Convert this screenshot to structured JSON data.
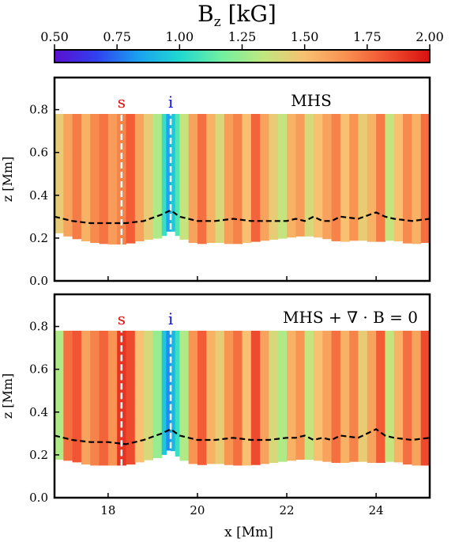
{
  "colorbar": {
    "title": "B",
    "title_sub": "z",
    "title_unit": " [kG]",
    "ticks": [
      "0.50",
      "0.75",
      "1.00",
      "1.25",
      "1.50",
      "1.75",
      "2.00"
    ],
    "range": [
      0.5,
      2.0
    ]
  },
  "colors": {
    "markers_s": "#e01010",
    "markers_i": "#1010e0",
    "colormap": [
      "#5a0fd0",
      "#3040f0",
      "#1aa0f0",
      "#20d8d0",
      "#70f0a0",
      "#c0e880",
      "#f8c070",
      "#f89050",
      "#f05030",
      "#d81010"
    ]
  },
  "xaxis": {
    "label": "x [Mm]",
    "ticks": [
      "18",
      "20",
      "22",
      "24"
    ],
    "range": [
      16.8,
      25.2
    ]
  },
  "chart_data": [
    {
      "type": "heatmap",
      "title": "MHS",
      "markers": [
        {
          "label": "s",
          "x": 18.3
        },
        {
          "label": "i",
          "x": 19.4
        }
      ],
      "ylabel": "z [Mm]",
      "yticks": [
        "0.0",
        "0.2",
        "0.4",
        "0.6",
        "0.8"
      ],
      "ylim": [
        0.0,
        0.95
      ],
      "xlim": [
        16.8,
        25.2
      ],
      "zmax": 0.78,
      "bottom_boundary": {
        "x": [
          16.8,
          17.2,
          17.6,
          18.0,
          18.4,
          18.8,
          19.2,
          19.4,
          19.6,
          20.0,
          20.4,
          20.8,
          21.2,
          21.6,
          22.0,
          22.4,
          22.8,
          23.2,
          23.6,
          24.0,
          24.4,
          24.8,
          25.2
        ],
        "z": [
          0.23,
          0.2,
          0.18,
          0.17,
          0.17,
          0.19,
          0.2,
          0.24,
          0.2,
          0.17,
          0.18,
          0.17,
          0.18,
          0.19,
          0.2,
          0.21,
          0.2,
          0.18,
          0.19,
          0.18,
          0.19,
          0.17,
          0.18
        ]
      },
      "tau_contour": {
        "x": [
          16.8,
          17.2,
          17.6,
          18.0,
          18.4,
          18.8,
          19.2,
          19.4,
          19.6,
          20.0,
          20.4,
          20.8,
          21.2,
          21.6,
          22.0,
          22.2,
          22.4,
          22.6,
          22.8,
          23.0,
          23.2,
          23.6,
          24.0,
          24.2,
          24.4,
          24.8,
          25.2
        ],
        "z": [
          0.3,
          0.28,
          0.27,
          0.27,
          0.27,
          0.28,
          0.31,
          0.33,
          0.3,
          0.28,
          0.28,
          0.29,
          0.28,
          0.28,
          0.28,
          0.29,
          0.28,
          0.3,
          0.28,
          0.28,
          0.3,
          0.29,
          0.32,
          0.3,
          0.29,
          0.28,
          0.29
        ]
      },
      "bz_columns": {
        "x": [
          16.8,
          17.0,
          17.2,
          17.4,
          17.6,
          17.8,
          18.0,
          18.2,
          18.4,
          18.6,
          18.8,
          19.0,
          19.2,
          19.3,
          19.4,
          19.5,
          19.6,
          19.8,
          20.0,
          20.2,
          20.4,
          20.6,
          20.8,
          21.0,
          21.2,
          21.4,
          21.6,
          21.8,
          22.0,
          22.2,
          22.4,
          22.6,
          22.8,
          23.0,
          23.2,
          23.4,
          23.6,
          23.8,
          24.0,
          24.2,
          24.4,
          24.6,
          24.8,
          25.0
        ],
        "bz": [
          1.45,
          1.6,
          1.72,
          1.55,
          1.68,
          1.74,
          1.62,
          1.7,
          1.8,
          1.6,
          1.45,
          1.3,
          1.05,
          0.85,
          0.95,
          1.1,
          1.35,
          1.6,
          1.75,
          1.55,
          1.4,
          1.62,
          1.7,
          1.5,
          1.78,
          1.6,
          1.45,
          1.35,
          1.55,
          1.62,
          1.4,
          1.5,
          1.6,
          1.7,
          1.5,
          1.65,
          1.45,
          1.55,
          1.72,
          1.35,
          1.5,
          1.68,
          1.55,
          1.75
        ]
      }
    },
    {
      "type": "heatmap",
      "title": "MHS + ∇ · B = 0",
      "markers": [
        {
          "label": "s",
          "x": 18.3
        },
        {
          "label": "i",
          "x": 19.4
        }
      ],
      "ylabel": "z [Mm]",
      "yticks": [
        "0.0",
        "0.2",
        "0.4",
        "0.6",
        "0.8"
      ],
      "ylim": [
        0.0,
        0.95
      ],
      "xlim": [
        16.8,
        25.2
      ],
      "zmax": 0.78,
      "bottom_boundary": {
        "x": [
          16.8,
          17.2,
          17.6,
          18.0,
          18.4,
          18.8,
          19.2,
          19.4,
          19.6,
          20.0,
          20.4,
          20.8,
          21.2,
          21.6,
          22.0,
          22.4,
          22.8,
          23.2,
          23.6,
          24.0,
          24.4,
          24.8,
          25.2
        ],
        "z": [
          0.18,
          0.17,
          0.15,
          0.15,
          0.15,
          0.17,
          0.19,
          0.23,
          0.18,
          0.15,
          0.16,
          0.15,
          0.15,
          0.16,
          0.17,
          0.18,
          0.17,
          0.16,
          0.17,
          0.16,
          0.17,
          0.15,
          0.15
        ]
      },
      "tau_contour": {
        "x": [
          16.8,
          17.2,
          17.6,
          18.0,
          18.4,
          18.8,
          19.2,
          19.4,
          19.6,
          20.0,
          20.4,
          20.8,
          21.2,
          21.6,
          22.0,
          22.2,
          22.4,
          22.6,
          22.8,
          23.0,
          23.2,
          23.6,
          24.0,
          24.2,
          24.4,
          24.8,
          25.2
        ],
        "z": [
          0.29,
          0.27,
          0.26,
          0.26,
          0.25,
          0.27,
          0.3,
          0.32,
          0.29,
          0.27,
          0.27,
          0.28,
          0.27,
          0.27,
          0.28,
          0.28,
          0.29,
          0.27,
          0.28,
          0.27,
          0.29,
          0.28,
          0.32,
          0.29,
          0.28,
          0.27,
          0.28
        ]
      },
      "bz_columns": {
        "x": [
          16.8,
          17.0,
          17.2,
          17.4,
          17.6,
          17.8,
          18.0,
          18.2,
          18.4,
          18.6,
          18.8,
          19.0,
          19.2,
          19.3,
          19.4,
          19.5,
          19.6,
          19.8,
          20.0,
          20.2,
          20.4,
          20.6,
          20.8,
          21.0,
          21.2,
          21.4,
          21.6,
          21.8,
          22.0,
          22.2,
          22.4,
          22.6,
          22.8,
          23.0,
          23.2,
          23.4,
          23.6,
          23.8,
          24.0,
          24.2,
          24.4,
          24.6,
          24.8,
          25.0
        ],
        "bz": [
          1.3,
          1.75,
          1.82,
          1.6,
          1.7,
          1.78,
          1.65,
          1.9,
          1.85,
          1.5,
          1.4,
          1.25,
          0.95,
          0.8,
          0.9,
          1.05,
          1.3,
          1.65,
          1.8,
          1.55,
          1.45,
          1.65,
          1.75,
          1.5,
          1.85,
          1.6,
          1.4,
          1.3,
          1.55,
          1.65,
          1.35,
          1.5,
          1.6,
          1.75,
          1.55,
          1.7,
          1.45,
          1.6,
          1.8,
          1.35,
          1.55,
          1.75,
          1.6,
          1.85
        ]
      }
    }
  ]
}
